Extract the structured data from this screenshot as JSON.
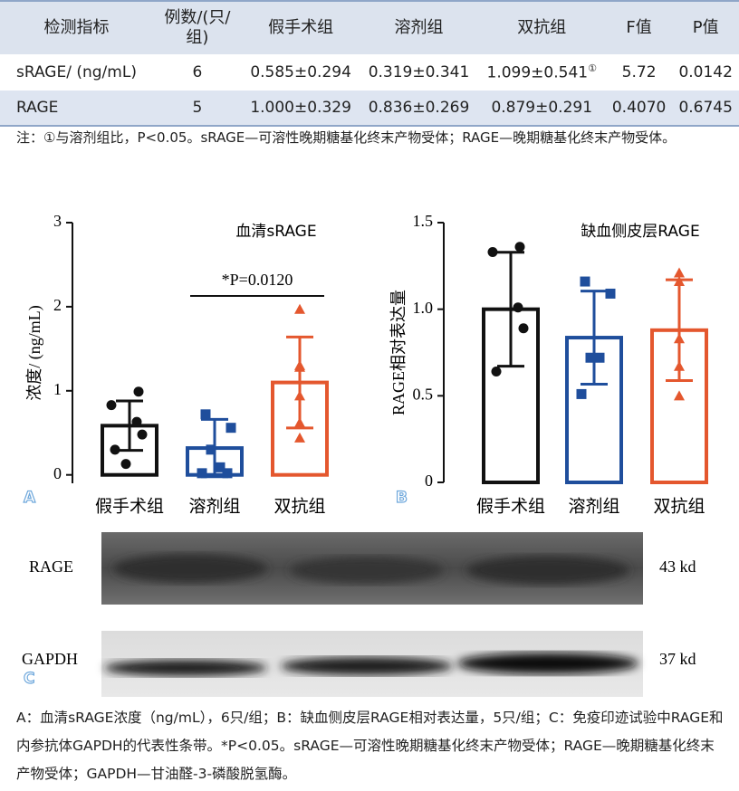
{
  "table": {
    "header": [
      "检测指标",
      "例数/(只/组)",
      "假手术组",
      "溶剂组",
      "双抗组",
      "F值",
      "P值"
    ],
    "rows": [
      [
        "sRAGE/ (ng/mL)",
        "6",
        "0.585±0.294",
        "0.319±0.341",
        {
          "text": "1.099±0.541",
          "sup": "①"
        },
        "5.72",
        "0.0142"
      ],
      [
        "RAGE",
        "5",
        "1.000±0.329",
        "0.836±0.269",
        "0.879±0.291",
        "0.4070",
        "0.6745"
      ]
    ],
    "note": "注：①与溶剂组比，P<0.05。sRAGE—可溶性晚期糖基化终末产物受体；RAGE—晚期糖基化终末产物受体。"
  },
  "chart_data": [
    {
      "type": "bar",
      "panel": "A",
      "title": "血清sRAGE",
      "y_label": "浓度/ (ng/mL)",
      "categories": [
        "假手术组",
        "溶剂组",
        "双抗组"
      ],
      "values": [
        0.585,
        0.319,
        1.099
      ],
      "errors": [
        0.294,
        0.341,
        0.541
      ],
      "colors": [
        "#111111",
        "#1f4e9c",
        "#e4572e"
      ],
      "markers": [
        "circle",
        "square",
        "triangle"
      ],
      "points": [
        [
          0.99,
          0.83,
          0.63,
          0.48,
          0.3,
          0.13
        ],
        [
          0.72,
          0.56,
          0.3,
          0.09,
          0.02,
          0.02
        ],
        [
          1.97,
          1.3,
          1.28,
          0.94,
          0.62,
          0.44
        ]
      ],
      "ylim": [
        -0.1,
        3
      ],
      "yticks": [
        0,
        1,
        2,
        3
      ],
      "annotation": {
        "text": "*P=0.0120",
        "from": 1,
        "to": 2
      }
    },
    {
      "type": "bar",
      "panel": "B",
      "title": "缺血侧皮层RAGE",
      "y_label": "RAGE相对表达量",
      "categories": [
        "假手术组",
        "溶剂组",
        "双抗组"
      ],
      "values": [
        1.0,
        0.836,
        0.879
      ],
      "errors": [
        0.329,
        0.269,
        0.291
      ],
      "colors": [
        "#111111",
        "#1f4e9c",
        "#e4572e"
      ],
      "markers": [
        "circle",
        "square",
        "triangle"
      ],
      "points": [
        [
          1.36,
          1.33,
          1.01,
          0.89,
          0.64
        ],
        [
          1.16,
          1.09,
          0.72,
          0.72,
          0.51
        ],
        [
          1.21,
          1.16,
          0.83,
          0.67,
          0.5
        ]
      ],
      "ylim": [
        0,
        1.5
      ],
      "yticks": [
        0,
        0.5,
        {
          "value": 1.0,
          "label": "1.0"
        },
        1.5
      ]
    }
  ],
  "blot": {
    "panel": "C",
    "rows": [
      {
        "name": "RAGE",
        "size": "43 kd"
      },
      {
        "name": "GAPDH",
        "size": "37 kd"
      }
    ]
  },
  "caption": "A：血清sRAGE浓度（ng/mL），6只/组；B：缺血侧皮层RAGE相对表达量，5只/组；C：免疫印迹试验中RAGE和内参抗体GAPDH的代表性条带。*P<0.05。sRAGE—可溶性晚期糖基化终末产物受体；RAGE—晚期糖基化终末产物受体；GAPDH—甘油醛-3-磷酸脱氢酶。"
}
